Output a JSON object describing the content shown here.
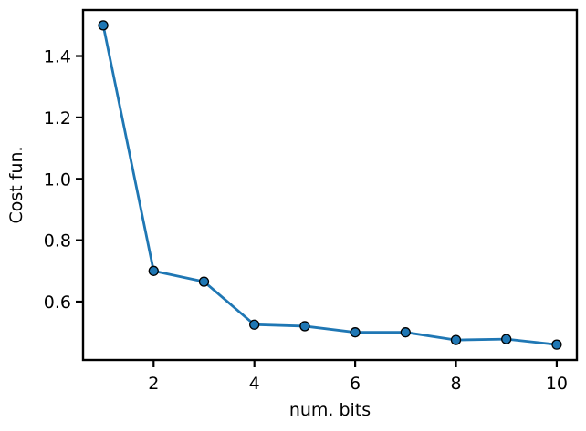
{
  "chart_data": {
    "type": "line",
    "title": "",
    "xlabel": "num. bits",
    "ylabel": "Cost fun.",
    "x": [
      1,
      2,
      3,
      4,
      5,
      6,
      7,
      8,
      9,
      10
    ],
    "series": [
      {
        "values": [
          1.5,
          0.7,
          0.665,
          0.525,
          0.52,
          0.5,
          0.5,
          0.475,
          0.478,
          0.46
        ]
      }
    ],
    "xlim": [
      0.6,
      10.4
    ],
    "ylim": [
      0.41,
      1.55
    ],
    "xticks": [
      2,
      4,
      6,
      8,
      10
    ],
    "xtick_labels": [
      "2",
      "4",
      "6",
      "8",
      "10"
    ],
    "yticks": [
      0.6,
      0.8,
      1.0,
      1.2,
      1.4
    ],
    "ytick_labels": [
      "0.6",
      "0.8",
      "1.0",
      "1.2",
      "1.4"
    ],
    "grid": false,
    "legend": "none",
    "colors": {
      "line": "#1f77b4",
      "marker_fill": "#1f77b4",
      "marker_edge": "#000000"
    }
  }
}
